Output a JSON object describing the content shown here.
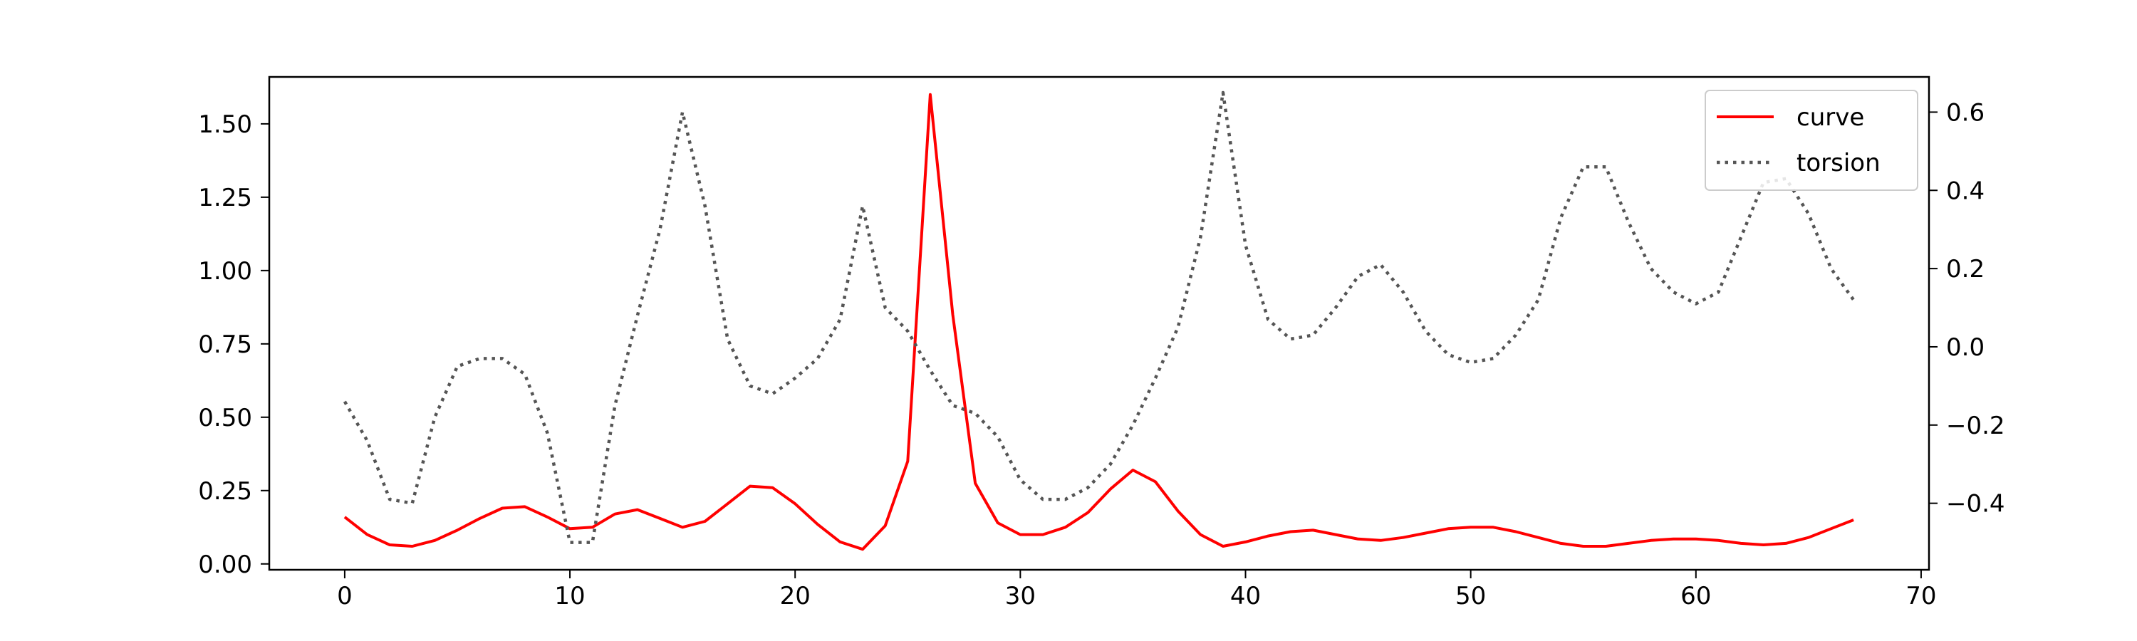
{
  "chart_data": {
    "type": "line",
    "title": "",
    "xlabel": "",
    "ylabel": "",
    "xlim": [
      -3.35,
      70.35
    ],
    "ylim_left": [
      -0.02,
      1.66
    ],
    "ylim_right": [
      -0.57,
      0.69
    ],
    "grid": false,
    "legend_position": "top-right",
    "x_ticks": [
      0,
      10,
      20,
      30,
      40,
      50,
      60,
      70
    ],
    "x_tick_labels": [
      "0",
      "10",
      "20",
      "30",
      "40",
      "50",
      "60",
      "70"
    ],
    "y_ticks_left": [
      0.0,
      0.25,
      0.5,
      0.75,
      1.0,
      1.25,
      1.5
    ],
    "y_tick_labels_left": [
      "0.00",
      "0.25",
      "0.50",
      "0.75",
      "1.00",
      "1.25",
      "1.50"
    ],
    "y_ticks_right": [
      -0.4,
      -0.2,
      0.0,
      0.2,
      0.4,
      0.6
    ],
    "y_tick_labels_right": [
      "−0.4",
      "−0.2",
      "0.0",
      "0.2",
      "0.4",
      "0.6"
    ],
    "series": [
      {
        "name": "curve",
        "axis": "left",
        "color": "#ff0000",
        "linestyle": "solid",
        "x": [
          0,
          1,
          2,
          3,
          4,
          5,
          6,
          7,
          8,
          9,
          10,
          11,
          12,
          13,
          14,
          15,
          16,
          17,
          18,
          19,
          20,
          21,
          22,
          23,
          24,
          25,
          26,
          27,
          28,
          29,
          30,
          31,
          32,
          33,
          34,
          35,
          36,
          37,
          38,
          39,
          40,
          41,
          42,
          43,
          44,
          45,
          46,
          47,
          48,
          49,
          50,
          51,
          52,
          53,
          54,
          55,
          56,
          57,
          58,
          59,
          60,
          61,
          62,
          63,
          64,
          65,
          66,
          67
        ],
        "values": [
          0.16,
          0.1,
          0.065,
          0.06,
          0.08,
          0.115,
          0.155,
          0.19,
          0.195,
          0.16,
          0.12,
          0.125,
          0.17,
          0.185,
          0.155,
          0.125,
          0.145,
          0.205,
          0.265,
          0.26,
          0.205,
          0.135,
          0.075,
          0.05,
          0.13,
          0.35,
          1.6,
          0.85,
          0.275,
          0.14,
          0.1,
          0.1,
          0.125,
          0.175,
          0.255,
          0.32,
          0.28,
          0.18,
          0.1,
          0.06,
          0.075,
          0.095,
          0.11,
          0.115,
          0.1,
          0.085,
          0.08,
          0.09,
          0.105,
          0.12,
          0.125,
          0.125,
          0.11,
          0.09,
          0.07,
          0.06,
          0.06,
          0.07,
          0.08,
          0.085,
          0.085,
          0.08,
          0.07,
          0.065,
          0.07,
          0.09,
          0.12,
          0.15
        ]
      },
      {
        "name": "torsion",
        "axis": "right",
        "color": "#555555",
        "linestyle": "dotted",
        "x": [
          0,
          1,
          2,
          3,
          4,
          5,
          6,
          7,
          8,
          9,
          10,
          11,
          12,
          13,
          14,
          15,
          16,
          17,
          18,
          19,
          20,
          21,
          22,
          23,
          24,
          25,
          26,
          27,
          28,
          29,
          30,
          31,
          32,
          33,
          34,
          35,
          36,
          37,
          38,
          39,
          40,
          41,
          42,
          43,
          44,
          45,
          46,
          47,
          48,
          49,
          50,
          51,
          52,
          53,
          54,
          55,
          56,
          57,
          58,
          59,
          60,
          61,
          62,
          63,
          64,
          65,
          66,
          67
        ],
        "values": [
          -0.14,
          -0.24,
          -0.39,
          -0.4,
          -0.18,
          -0.05,
          -0.03,
          -0.03,
          -0.07,
          -0.22,
          -0.5,
          -0.5,
          -0.15,
          0.08,
          0.3,
          0.6,
          0.36,
          0.02,
          -0.1,
          -0.12,
          -0.08,
          -0.03,
          0.07,
          0.36,
          0.1,
          0.04,
          -0.06,
          -0.15,
          -0.17,
          -0.23,
          -0.34,
          -0.39,
          -0.39,
          -0.36,
          -0.3,
          -0.2,
          -0.08,
          0.05,
          0.28,
          0.65,
          0.26,
          0.07,
          0.02,
          0.03,
          0.1,
          0.18,
          0.21,
          0.14,
          0.04,
          -0.02,
          -0.04,
          -0.03,
          0.03,
          0.12,
          0.33,
          0.46,
          0.46,
          0.32,
          0.2,
          0.14,
          0.11,
          0.14,
          0.28,
          0.42,
          0.43,
          0.34,
          0.2,
          0.12
        ]
      }
    ]
  }
}
